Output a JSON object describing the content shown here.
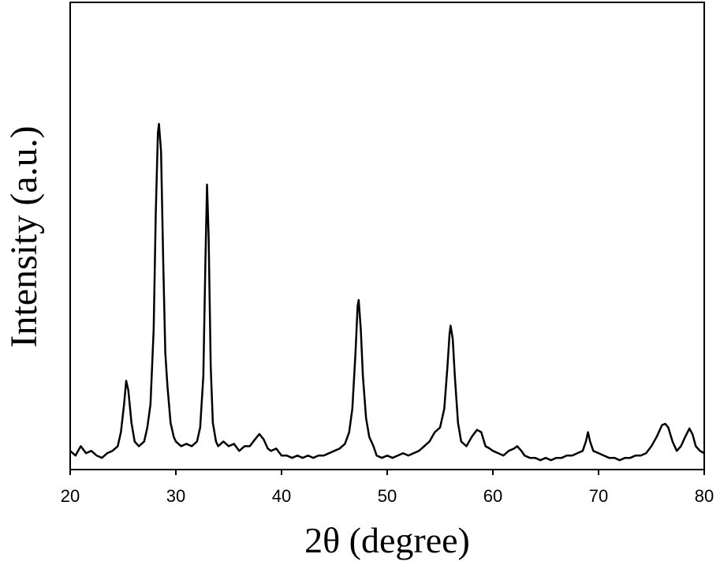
{
  "chart_data": {
    "type": "line",
    "xlabel": "2θ (degree)",
    "ylabel": "Intensity (a.u.)",
    "color": "#000000",
    "xlim": [
      20,
      80
    ],
    "xticks": [
      20,
      30,
      40,
      50,
      60,
      70,
      80
    ],
    "ylim": [
      0,
      100
    ],
    "x": [
      20,
      20.5,
      21,
      21.5,
      22,
      22.5,
      23,
      23.5,
      24,
      24.5,
      24.8,
      25.1,
      25.3,
      25.5,
      25.8,
      26.1,
      26.5,
      27,
      27.3,
      27.6,
      27.9,
      28.1,
      28.3,
      28.4,
      28.6,
      28.8,
      29,
      29.2,
      29.5,
      29.8,
      30,
      30.5,
      31,
      31.5,
      32,
      32.3,
      32.6,
      32.8,
      32.95,
      33.1,
      33.3,
      33.5,
      33.8,
      34,
      34.5,
      35,
      35.5,
      36,
      36.5,
      37,
      37.5,
      37.9,
      38.3,
      38.7,
      39,
      39.5,
      40,
      40.5,
      41,
      41.5,
      42,
      42.5,
      43,
      43.5,
      44,
      44.5,
      45,
      45.5,
      46,
      46.4,
      46.7,
      47,
      47.2,
      47.3,
      47.5,
      47.7,
      48,
      48.3,
      48.7,
      49,
      49.5,
      50,
      50.5,
      51,
      51.5,
      52,
      52.5,
      53,
      53.5,
      54,
      54.5,
      55,
      55.4,
      55.7,
      55.9,
      56,
      56.2,
      56.4,
      56.7,
      57,
      57.5,
      58,
      58.5,
      58.9,
      59.3,
      59.7,
      60,
      60.5,
      61,
      61.5,
      62,
      62.3,
      62.7,
      63,
      63.5,
      64,
      64.5,
      65,
      65.5,
      66,
      66.5,
      67,
      67.5,
      68,
      68.5,
      68.8,
      69,
      69.2,
      69.5,
      70,
      70.5,
      71,
      71.5,
      72,
      72.5,
      73,
      73.5,
      74,
      74.5,
      75,
      75.5,
      76,
      76.3,
      76.6,
      77,
      77.4,
      77.8,
      78.2,
      78.6,
      78.9,
      79.2,
      79.6,
      80
    ],
    "values": [
      4,
      3,
      5,
      3.5,
      4,
      3,
      2.5,
      3.5,
      4,
      5,
      8,
      14,
      19,
      17,
      10,
      6,
      5,
      6,
      9,
      14,
      30,
      55,
      72,
      74,
      68,
      45,
      25,
      18,
      10,
      7,
      6,
      5,
      5.5,
      5,
      6,
      9,
      20,
      45,
      61,
      50,
      22,
      10,
      6,
      5,
      6,
      5,
      5.5,
      4,
      5,
      5,
      6.5,
      7.6,
      6.5,
      4.5,
      4,
      4.5,
      3,
      3,
      2.5,
      3,
      2.5,
      3,
      2.5,
      3,
      3,
      3.5,
      4,
      4.5,
      5.5,
      8,
      13,
      25,
      35,
      36.3,
      30,
      20,
      11,
      7,
      5,
      3,
      2.5,
      3,
      2.5,
      3,
      3.5,
      3,
      3.5,
      4,
      5,
      6,
      8,
      9,
      13,
      22,
      29,
      30.8,
      28,
      20,
      10,
      6,
      5,
      7,
      8.5,
      8,
      5,
      4.5,
      4,
      3.5,
      3,
      4,
      4.5,
      5,
      4,
      3,
      2.5,
      2.5,
      2,
      2.5,
      2,
      2.5,
      2.5,
      3,
      3,
      3.5,
      4,
      6,
      8,
      6,
      4,
      3.5,
      3,
      2.5,
      2.5,
      2,
      2.5,
      2.5,
      3,
      3,
      3.5,
      5,
      7,
      9.5,
      9.8,
      9,
      6,
      4,
      5,
      7,
      8.8,
      7.5,
      5,
      4,
      3.5
    ]
  }
}
